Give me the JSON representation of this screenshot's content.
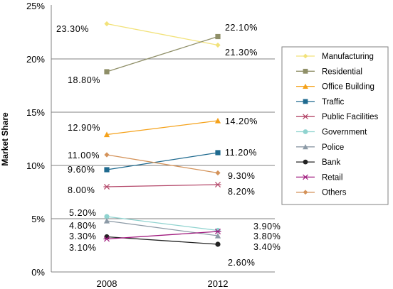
{
  "chart_data": {
    "type": "line",
    "ylabel": "Market Share",
    "ylim": [
      0,
      25
    ],
    "yticks": [
      "0%",
      "5%",
      "10%",
      "15%",
      "20%",
      "25%"
    ],
    "categories": [
      "2008",
      "2012"
    ],
    "grid": "horizontal",
    "legend_position": "right",
    "series": [
      {
        "name": "Manufacturing",
        "values": [
          23.3,
          21.3
        ],
        "labels": [
          "23.30%",
          "21.30%"
        ],
        "color": "#f2e27a",
        "marker": "diamond"
      },
      {
        "name": "Residential",
        "values": [
          18.8,
          22.1
        ],
        "labels": [
          "18.80%",
          "22.10%"
        ],
        "color": "#8f8f68",
        "marker": "square"
      },
      {
        "name": "Office Building",
        "values": [
          12.9,
          14.2
        ],
        "labels": [
          "12.90%",
          "14.20%"
        ],
        "color": "#f5a21b",
        "marker": "triangle"
      },
      {
        "name": "Traffic",
        "values": [
          9.6,
          11.2
        ],
        "labels": [
          "9.60%",
          "11.20%"
        ],
        "color": "#1f6a8f",
        "marker": "square"
      },
      {
        "name": "Public Facilities",
        "values": [
          8.0,
          8.2
        ],
        "labels": [
          "8.00%",
          "8.20%"
        ],
        "color": "#b4486a",
        "marker": "asterisk"
      },
      {
        "name": "Government",
        "values": [
          5.2,
          3.9
        ],
        "labels": [
          "5.20%",
          "3.90%"
        ],
        "color": "#8fd3cf",
        "marker": "circle"
      },
      {
        "name": "Police",
        "values": [
          4.8,
          3.4
        ],
        "labels": [
          "4.80%",
          "3.40%"
        ],
        "color": "#8c9aa6",
        "marker": "triangle"
      },
      {
        "name": "Bank",
        "values": [
          3.3,
          2.6
        ],
        "labels": [
          "3.30%",
          "2.60%"
        ],
        "color": "#222222",
        "marker": "circle"
      },
      {
        "name": "Retail",
        "values": [
          3.1,
          3.8
        ],
        "labels": [
          "3.10%",
          "3.80%"
        ],
        "color": "#a0197d",
        "marker": "asterisk"
      },
      {
        "name": "Others",
        "values": [
          11.0,
          9.3
        ],
        "labels": [
          "11.00%",
          "9.30%"
        ],
        "color": "#d4935a",
        "marker": "diamond"
      }
    ]
  }
}
